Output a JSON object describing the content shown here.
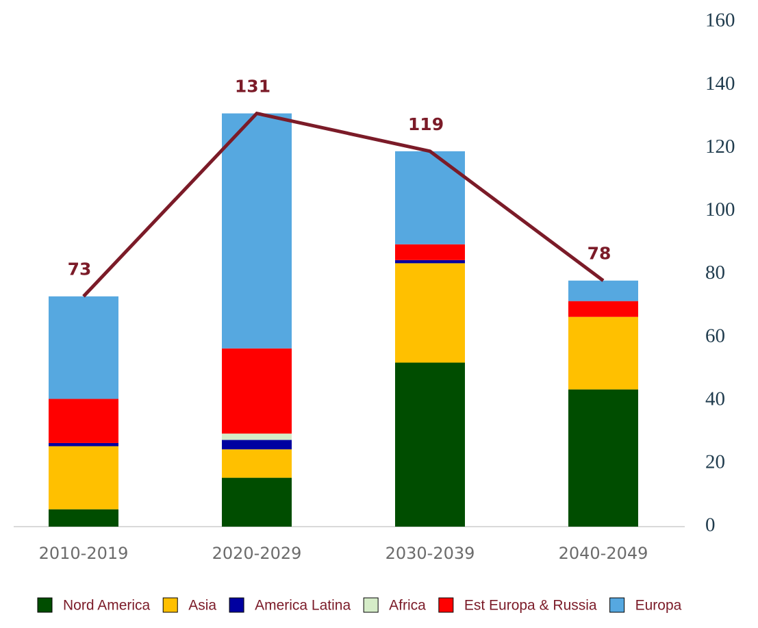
{
  "chart_data": {
    "type": "bar",
    "stacked": true,
    "categories": [
      "2010-2019",
      "2020-2029",
      "2030-2039",
      "2040-2049"
    ],
    "series": [
      {
        "name": "Nord America",
        "color": "#004d00",
        "values": [
          5.5,
          15.5,
          52,
          43.5
        ]
      },
      {
        "name": "Asia",
        "color": "#ffc000",
        "values": [
          20,
          9,
          31.5,
          23
        ]
      },
      {
        "name": "America Latina",
        "color": "#0000a0",
        "values": [
          1,
          3,
          1,
          0
        ]
      },
      {
        "name": "Africa",
        "color": "#d5ecc8",
        "values": [
          0,
          2,
          0,
          0
        ]
      },
      {
        "name": "Est Europa & Russia",
        "color": "#ff0000",
        "values": [
          14,
          27,
          5,
          5
        ]
      },
      {
        "name": "Europa",
        "color": "#56a8e0",
        "values": [
          32.5,
          74.5,
          29.5,
          6.5
        ]
      }
    ],
    "line": {
      "color": "#7b1b28",
      "values": [
        73,
        131,
        119,
        78
      ]
    },
    "ylim": [
      0,
      160
    ],
    "yticks": [
      0,
      20,
      40,
      60,
      80,
      100,
      120,
      140,
      160
    ],
    "y_axis_side": "right"
  }
}
